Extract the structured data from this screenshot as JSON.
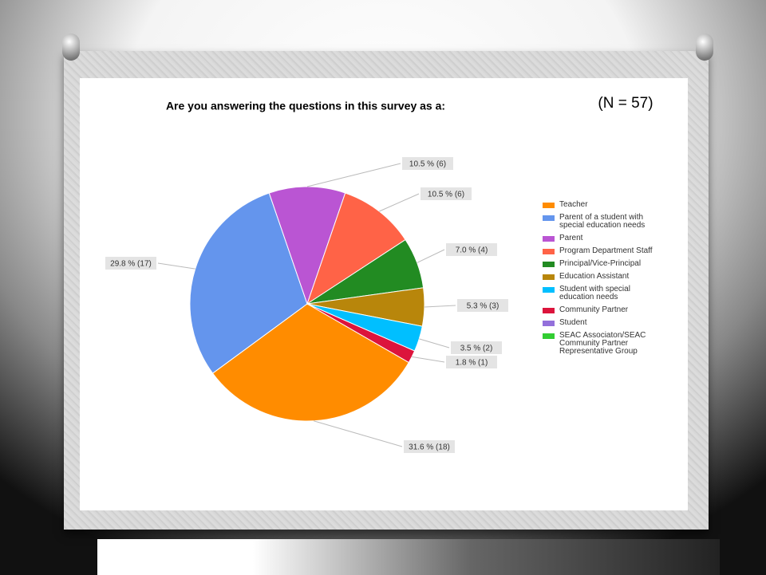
{
  "chart_data": {
    "type": "pie",
    "title": "Are you answering the questions in this survey as a:",
    "annotation": "(N = 57)",
    "categories": [
      "Teacher",
      "Parent of a student with special education needs",
      "Parent",
      "Program Department Staff",
      "Principal/Vice-Principal",
      "Education Assistant",
      "Student with special education needs",
      "Community Partner",
      "Student",
      "SEAC Associaton/SEAC Community Partner Representative Group"
    ],
    "values": [
      18,
      17,
      6,
      6,
      4,
      3,
      2,
      1,
      0,
      0
    ],
    "value_labels": [
      "31.6 % (18)",
      "29.8 % (17)",
      "10.5 % (6)",
      "10.5 % (6)",
      "7.0 % (4)",
      "5.3 % (3)",
      "3.5 % (2)",
      "1.8 % (1)",
      null,
      null
    ],
    "colors": [
      "#ff8c00",
      "#6495ed",
      "#ba55d3",
      "#ff6347",
      "#228b22",
      "#b8860b",
      "#00bfff",
      "#dc143c",
      "#9370db",
      "#32cd32"
    ],
    "legend": "right"
  }
}
